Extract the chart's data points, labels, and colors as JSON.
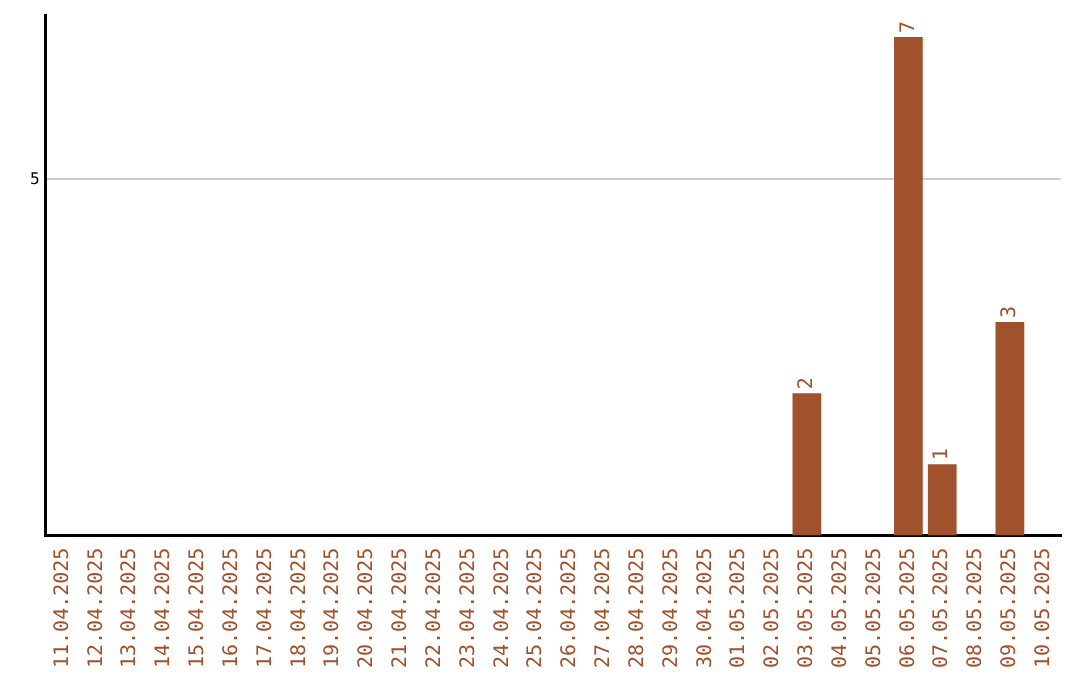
{
  "chart_data": {
    "type": "bar",
    "categories": [
      "11.04.2025",
      "12.04.2025",
      "13.04.2025",
      "14.04.2025",
      "15.04.2025",
      "16.04.2025",
      "17.04.2025",
      "18.04.2025",
      "19.04.2025",
      "20.04.2025",
      "21.04.2025",
      "22.04.2025",
      "23.04.2025",
      "24.04.2025",
      "25.04.2025",
      "26.04.2025",
      "27.04.2025",
      "28.04.2025",
      "29.04.2025",
      "30.04.2025",
      "01.05.2025",
      "02.05.2025",
      "03.05.2025",
      "04.05.2025",
      "05.05.2025",
      "06.05.2025",
      "07.05.2025",
      "08.05.2025",
      "09.05.2025",
      "10.05.2025"
    ],
    "values": [
      null,
      null,
      null,
      null,
      null,
      null,
      null,
      null,
      null,
      null,
      null,
      null,
      null,
      null,
      null,
      null,
      null,
      null,
      null,
      null,
      null,
      null,
      2,
      null,
      null,
      7,
      1,
      null,
      3,
      null
    ],
    "data_labels": true,
    "color": "#a0522d",
    "ylim": [
      0,
      7.3
    ],
    "yticks": [
      5
    ],
    "grid": "y",
    "legend": false
  }
}
